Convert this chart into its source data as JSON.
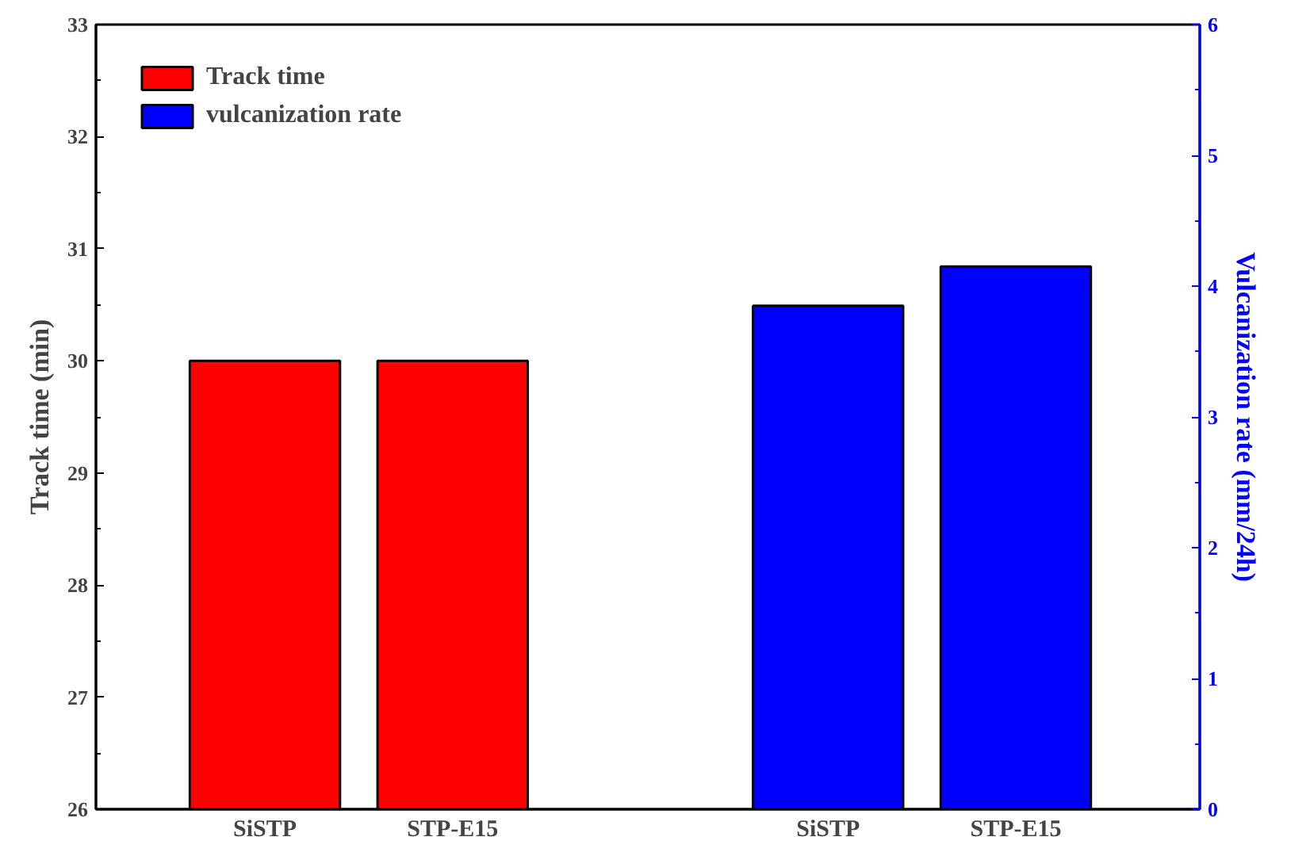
{
  "chart_data": {
    "type": "bar",
    "categories": [
      "SiSTP",
      "STP-E15",
      null,
      "SiSTP",
      "STP-E15"
    ],
    "series": [
      {
        "name": "Track time",
        "color": "#ff0000",
        "values": [
          30,
          30,
          null,
          null,
          null
        ]
      },
      {
        "name": "vulcanization rate",
        "color": "#0000ff",
        "values": [
          null,
          null,
          null,
          3.85,
          4.15
        ],
        "axis": "y2"
      }
    ],
    "ylabel": "Track time (min)",
    "y2label": "Vulcanization rate (mm/24h)",
    "ylim": [
      26,
      33
    ],
    "yticks": [
      26,
      27,
      28,
      29,
      30,
      31,
      32,
      33
    ],
    "y2lim": [
      0,
      6
    ],
    "y2ticks": [
      0,
      1,
      2,
      3,
      4,
      5,
      6
    ],
    "legend": "top left",
    "grid": false
  }
}
